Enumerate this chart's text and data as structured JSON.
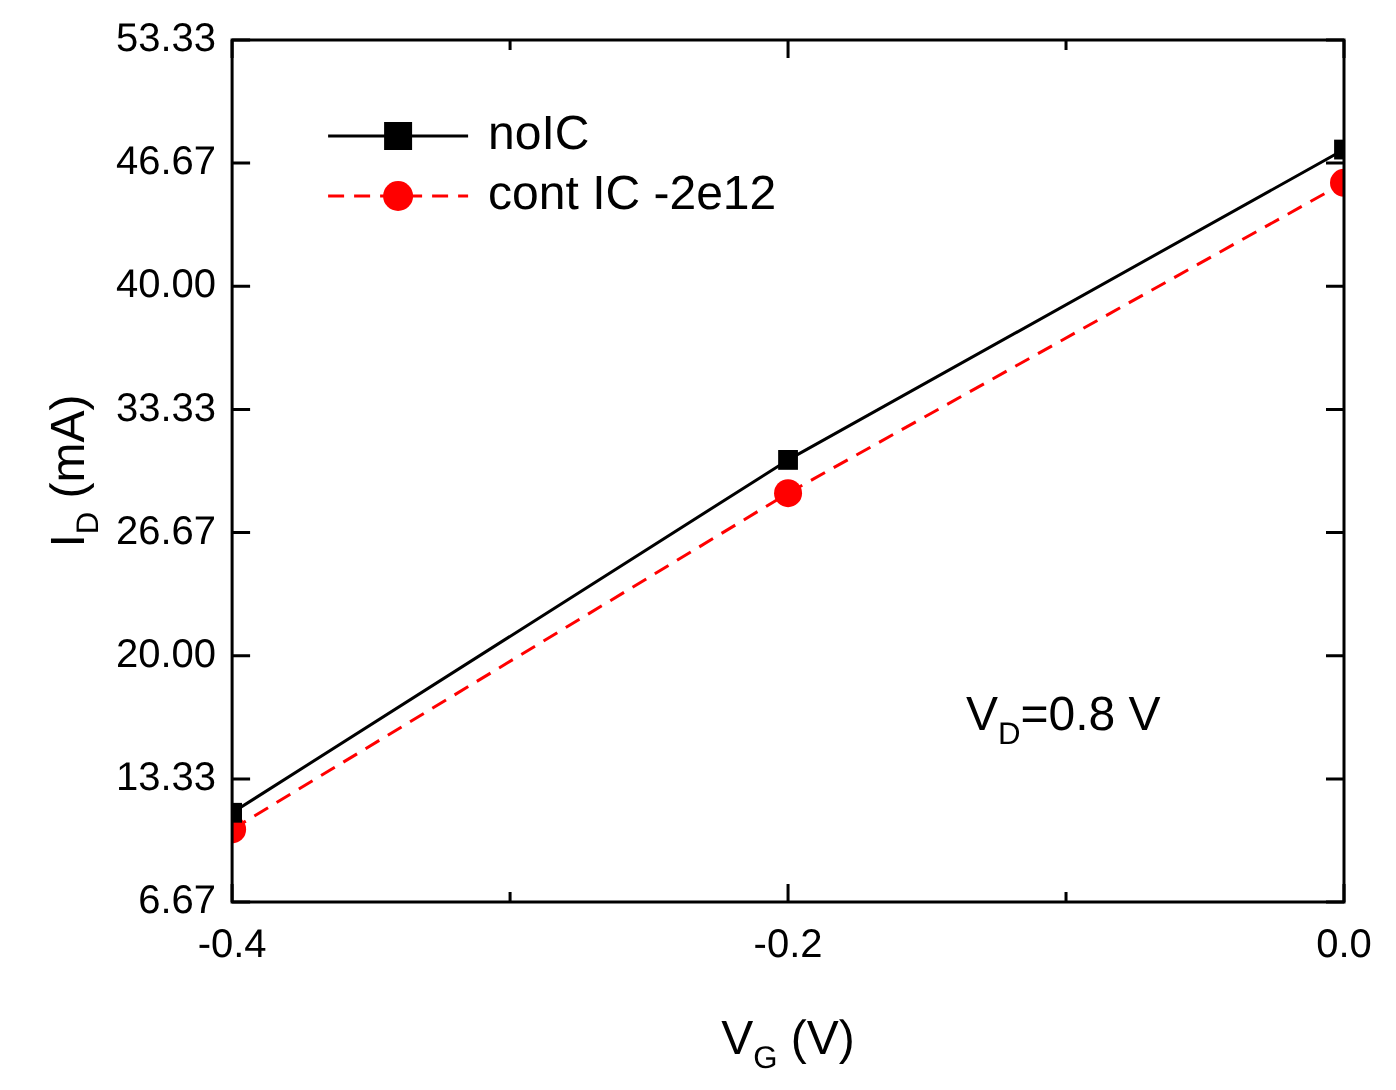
{
  "chart_data": {
    "type": "line",
    "xlabel": "V$_{G}$ (V)",
    "ylabel": "I$_{D}$ (mA)",
    "x": [
      -0.4,
      -0.2,
      0.0
    ],
    "series": [
      {
        "name": "noIC",
        "color": "#000000",
        "marker": "square",
        "line_style": "solid",
        "values": [
          11.5,
          30.6,
          47.4
        ]
      },
      {
        "name": "cont IC -2e12",
        "color": "#ff0000",
        "marker": "circle",
        "line_style": "dashed",
        "values": [
          10.6,
          28.8,
          45.6
        ]
      }
    ],
    "xlim": [
      -0.4,
      0.0
    ],
    "xticks": [
      {
        "value": -0.4,
        "label": "-0.4"
      },
      {
        "value": -0.3,
        "label": null
      },
      {
        "value": -0.2,
        "label": "-0.2"
      },
      {
        "value": -0.1,
        "label": null
      },
      {
        "value": 0.0,
        "label": "0.0"
      }
    ],
    "ylim": [
      6.67,
      53.33
    ],
    "yticks": [
      {
        "value": 6.67,
        "label": "6.67"
      },
      {
        "value": 13.33,
        "label": "13.33"
      },
      {
        "value": 20,
        "label": "20.00"
      },
      {
        "value": 26.67,
        "label": "26.67"
      },
      {
        "value": 33.33,
        "label": "33.33"
      },
      {
        "value": 40,
        "label": "40.00"
      },
      {
        "value": 46.67,
        "label": "46.67"
      },
      {
        "value": 53.33,
        "label": "53.33"
      }
    ],
    "annotations": [
      "V$_{D}$=0.8 V"
    ],
    "legend": "top left",
    "grid": false
  }
}
